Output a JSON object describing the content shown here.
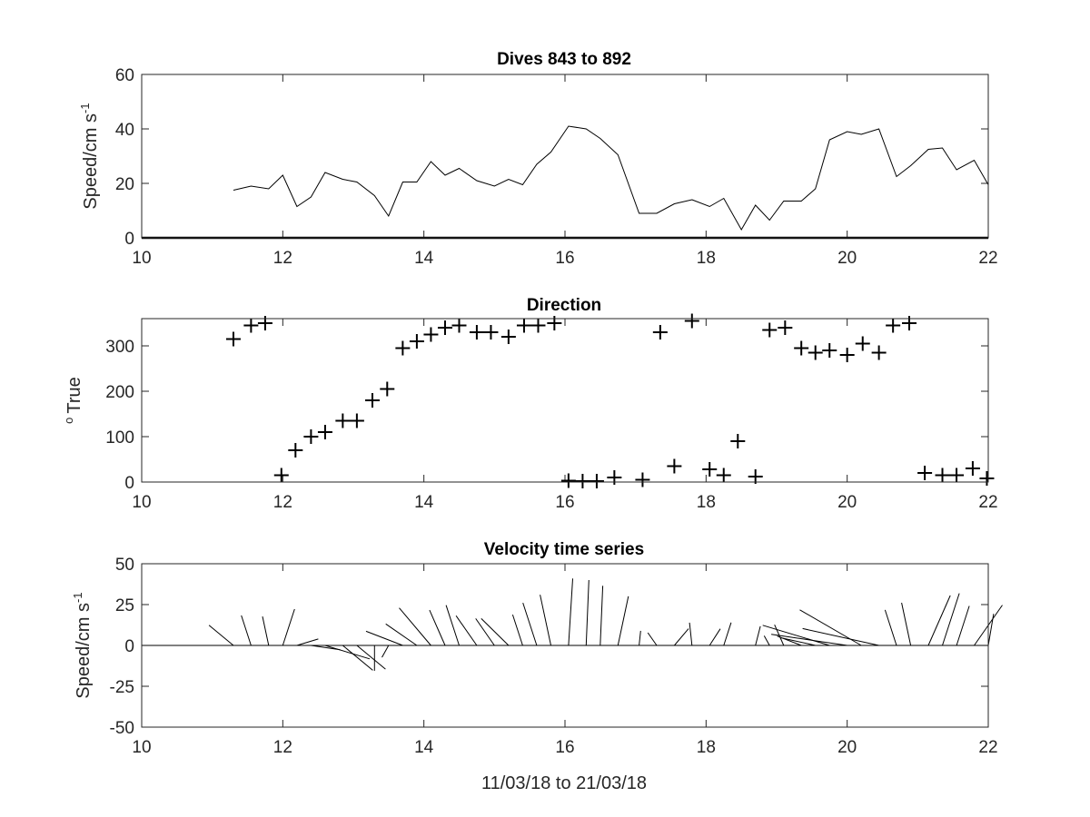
{
  "chart_data": [
    {
      "type": "line",
      "title": "Dives 843 to 892",
      "ylabel": "Speed/cm s",
      "ylabel_sup": "-1",
      "xlim": [
        10,
        22
      ],
      "ylim": [
        0,
        60
      ],
      "xticks": [
        10,
        12,
        14,
        16,
        18,
        20,
        22
      ],
      "yticks": [
        0,
        20,
        40,
        60
      ],
      "x": [
        11.3,
        11.55,
        11.8,
        12.0,
        12.2,
        12.4,
        12.6,
        12.85,
        13.05,
        13.3,
        13.5,
        13.7,
        13.9,
        14.1,
        14.3,
        14.5,
        14.75,
        15.0,
        15.2,
        15.4,
        15.6,
        15.8,
        16.05,
        16.3,
        16.5,
        16.75,
        17.05,
        17.3,
        17.55,
        17.8,
        18.05,
        18.25,
        18.5,
        18.7,
        18.9,
        19.1,
        19.35,
        19.55,
        19.75,
        20.0,
        20.2,
        20.45,
        20.7,
        20.9,
        21.15,
        21.35,
        21.55,
        21.8,
        22.0
      ],
      "y": [
        17.5,
        19,
        18,
        23,
        11.5,
        15,
        24,
        21.5,
        20.5,
        15.5,
        8,
        20.5,
        20.5,
        28,
        23,
        25.5,
        21,
        19,
        21.5,
        19.5,
        27,
        31.5,
        41,
        40,
        36.5,
        30.5,
        9,
        9,
        12.5,
        14,
        11.5,
        14.5,
        3,
        12,
        6.5,
        13.5,
        13.5,
        18,
        36,
        39,
        38,
        40,
        22.5,
        26.5,
        32.5,
        33,
        25,
        28.5,
        19.5
      ]
    },
    {
      "type": "scatter",
      "title": "Direction",
      "ylabel": "True",
      "ylabel_pre": "o",
      "marker": "+",
      "xlim": [
        10,
        22
      ],
      "ylim": [
        0,
        360
      ],
      "xticks": [
        10,
        12,
        14,
        16,
        18,
        20,
        22
      ],
      "yticks": [
        0,
        100,
        200,
        300
      ],
      "x": [
        11.3,
        11.55,
        11.75,
        11.98,
        12.18,
        12.4,
        12.6,
        12.85,
        13.05,
        13.27,
        13.48,
        13.7,
        13.9,
        14.1,
        14.3,
        14.5,
        14.75,
        14.95,
        15.2,
        15.42,
        15.62,
        15.85,
        16.05,
        16.25,
        16.45,
        16.7,
        17.1,
        17.35,
        17.55,
        17.8,
        18.05,
        18.25,
        18.45,
        18.7,
        18.9,
        19.12,
        19.35,
        19.55,
        19.75,
        20.0,
        20.22,
        20.45,
        20.65,
        20.88,
        21.1,
        21.35,
        21.55,
        21.78,
        21.98
      ],
      "y": [
        315,
        345,
        350,
        15,
        70,
        100,
        110,
        135,
        135,
        180,
        205,
        295,
        310,
        325,
        340,
        345,
        330,
        330,
        320,
        345,
        345,
        350,
        3,
        2,
        2,
        10,
        5,
        330,
        35,
        355,
        28,
        15,
        90,
        12,
        335,
        340,
        295,
        285,
        290,
        280,
        305,
        285,
        345,
        350,
        20,
        15,
        15,
        30,
        8
      ]
    },
    {
      "type": "quiver",
      "title": "Velocity time series",
      "ylabel": "Speed/cm s",
      "ylabel_sup": "-1",
      "xlabel": "11/03/18 to 21/03/18",
      "xlim": [
        10,
        22
      ],
      "ylim": [
        -50,
        50
      ],
      "xticks": [
        10,
        12,
        14,
        16,
        18,
        20,
        22
      ],
      "yticks": [
        50,
        25,
        0,
        -25,
        -50
      ],
      "ytick_labels": [
        "50",
        "25",
        "0",
        "-25",
        "-50"
      ],
      "t": [
        11.3,
        11.55,
        11.8,
        12.0,
        12.2,
        12.4,
        12.6,
        12.85,
        13.05,
        13.3,
        13.5,
        13.7,
        13.9,
        14.1,
        14.3,
        14.5,
        14.75,
        15.0,
        15.2,
        15.4,
        15.6,
        15.8,
        16.05,
        16.3,
        16.5,
        16.75,
        17.05,
        17.3,
        17.55,
        17.8,
        18.05,
        18.25,
        18.5,
        18.7,
        18.9,
        19.1,
        19.35,
        19.55,
        19.75,
        20.0,
        20.2,
        20.45,
        20.7,
        20.9,
        21.15,
        21.35,
        21.55,
        21.8,
        22.0
      ],
      "speed": [
        17.5,
        19,
        18,
        23,
        11.5,
        15,
        24,
        21.5,
        20.5,
        15.5,
        8,
        20.5,
        20.5,
        28,
        23,
        25.5,
        21,
        19,
        21.5,
        19.5,
        27,
        31.5,
        41,
        40,
        36.5,
        30.5,
        9,
        9,
        12.5,
        14,
        11.5,
        14.5,
        3,
        12,
        6.5,
        13.5,
        13.5,
        18,
        36,
        39,
        38,
        40,
        22.5,
        26.5,
        32.5,
        33,
        25,
        28.5,
        19.5
      ],
      "direction_deg_true": [
        315,
        345,
        350,
        15,
        70,
        100,
        110,
        135,
        135,
        180,
        205,
        295,
        310,
        325,
        340,
        345,
        330,
        330,
        320,
        345,
        345,
        350,
        3,
        2,
        2,
        10,
        5,
        330,
        35,
        355,
        28,
        15,
        90,
        12,
        335,
        340,
        295,
        285,
        290,
        280,
        305,
        285,
        345,
        350,
        20,
        15,
        15,
        30,
        8
      ]
    }
  ]
}
